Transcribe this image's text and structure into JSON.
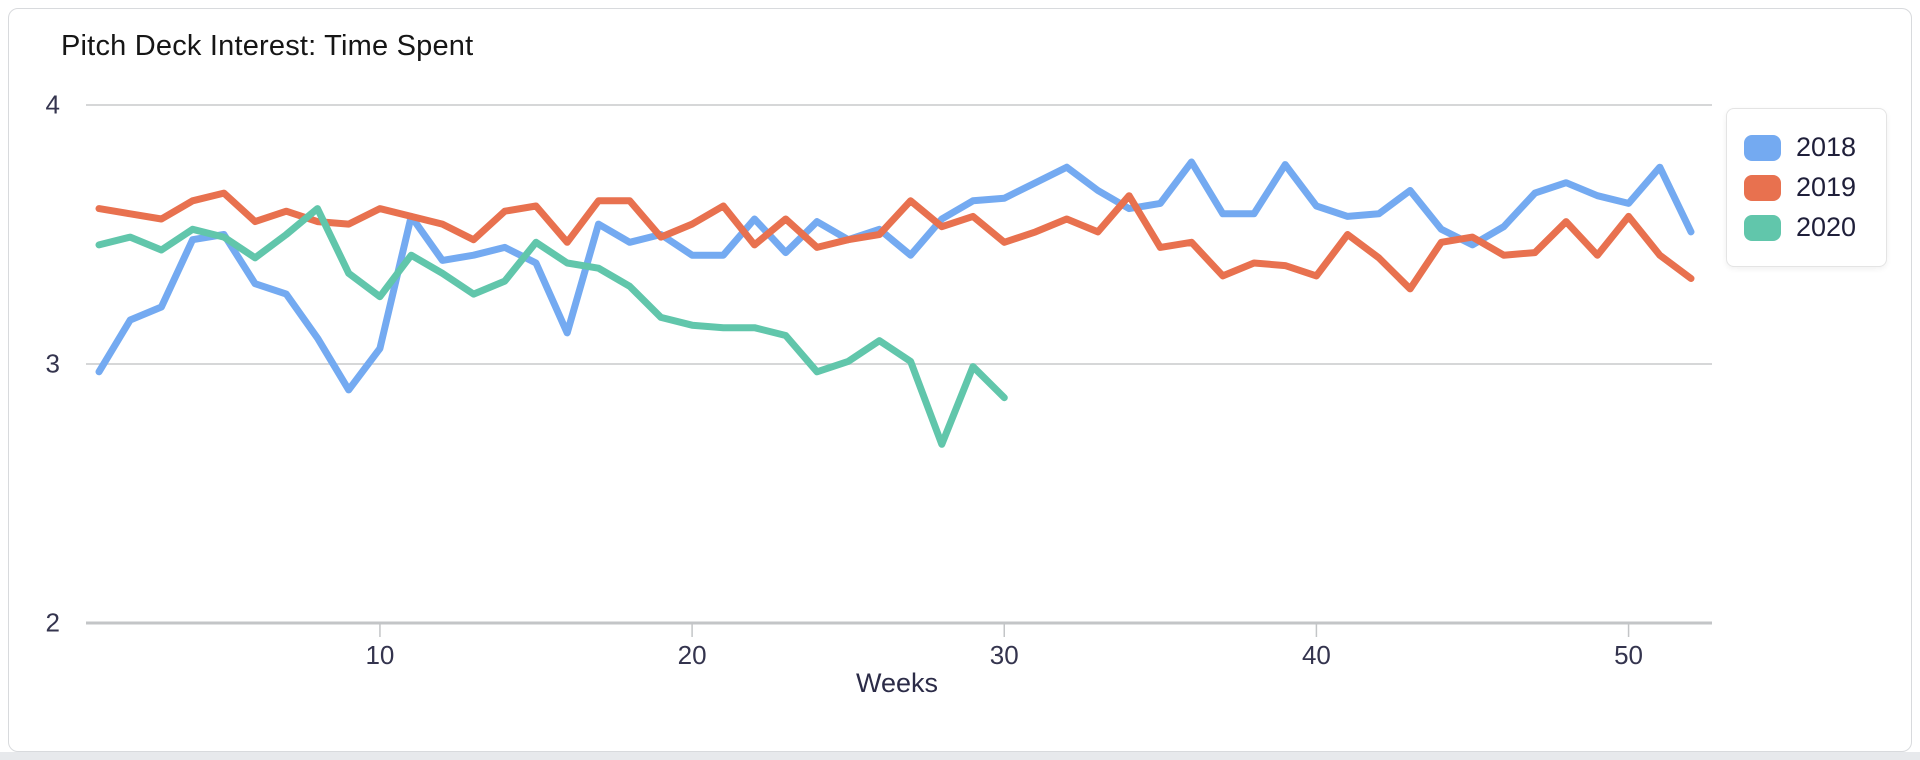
{
  "card": {
    "title": "Pitch Deck Interest: Time Spent"
  },
  "chart_data": {
    "type": "line",
    "title": "Pitch Deck Interest: Time Spent",
    "xlabel": "Weeks",
    "ylabel": "",
    "xlim": [
      1,
      52
    ],
    "ylim": [
      2,
      4
    ],
    "x_ticks": [
      10,
      20,
      30,
      40,
      50
    ],
    "y_ticks": [
      4,
      3,
      2
    ],
    "grid": "horizontal",
    "legend_position": "outside-top-right",
    "x_unit": "week",
    "series": [
      {
        "name": "2018",
        "color": "#74aaf1",
        "x_start": 1,
        "values": [
          2.97,
          3.17,
          3.22,
          3.48,
          3.5,
          3.31,
          3.27,
          3.1,
          2.9,
          3.06,
          3.57,
          3.4,
          3.42,
          3.45,
          3.39,
          3.12,
          3.54,
          3.47,
          3.5,
          3.42,
          3.42,
          3.56,
          3.43,
          3.55,
          3.48,
          3.52,
          3.42,
          3.56,
          3.63,
          3.64,
          3.7,
          3.76,
          3.67,
          3.6,
          3.62,
          3.78,
          3.58,
          3.58,
          3.77,
          3.61,
          3.57,
          3.58,
          3.67,
          3.52,
          3.46,
          3.53,
          3.66,
          3.7,
          3.65,
          3.62,
          3.76,
          3.51
        ]
      },
      {
        "name": "2019",
        "color": "#e8714f",
        "x_start": 1,
        "values": [
          3.6,
          3.58,
          3.56,
          3.63,
          3.66,
          3.55,
          3.59,
          3.55,
          3.54,
          3.6,
          3.57,
          3.54,
          3.48,
          3.59,
          3.61,
          3.47,
          3.63,
          3.63,
          3.49,
          3.54,
          3.61,
          3.46,
          3.56,
          3.45,
          3.48,
          3.5,
          3.63,
          3.53,
          3.57,
          3.47,
          3.51,
          3.56,
          3.51,
          3.65,
          3.45,
          3.47,
          3.34,
          3.39,
          3.38,
          3.34,
          3.5,
          3.41,
          3.29,
          3.47,
          3.49,
          3.42,
          3.43,
          3.55,
          3.42,
          3.57,
          3.42,
          3.33
        ]
      },
      {
        "name": "2020",
        "color": "#61c6ab",
        "x_start": 1,
        "values": [
          3.46,
          3.49,
          3.44,
          3.52,
          3.49,
          3.41,
          3.5,
          3.6,
          3.35,
          3.26,
          3.42,
          3.35,
          3.27,
          3.32,
          3.47,
          3.39,
          3.37,
          3.3,
          3.18,
          3.15,
          3.14,
          3.14,
          3.11,
          2.97,
          3.01,
          3.09,
          3.01,
          2.69,
          2.99,
          2.87
        ]
      }
    ],
    "draw_order": [
      0,
      1,
      2
    ],
    "colors": {
      "gridline": "#c9cacc",
      "axis_line": "#c3c5c7",
      "tick_text": "#34344e"
    }
  }
}
